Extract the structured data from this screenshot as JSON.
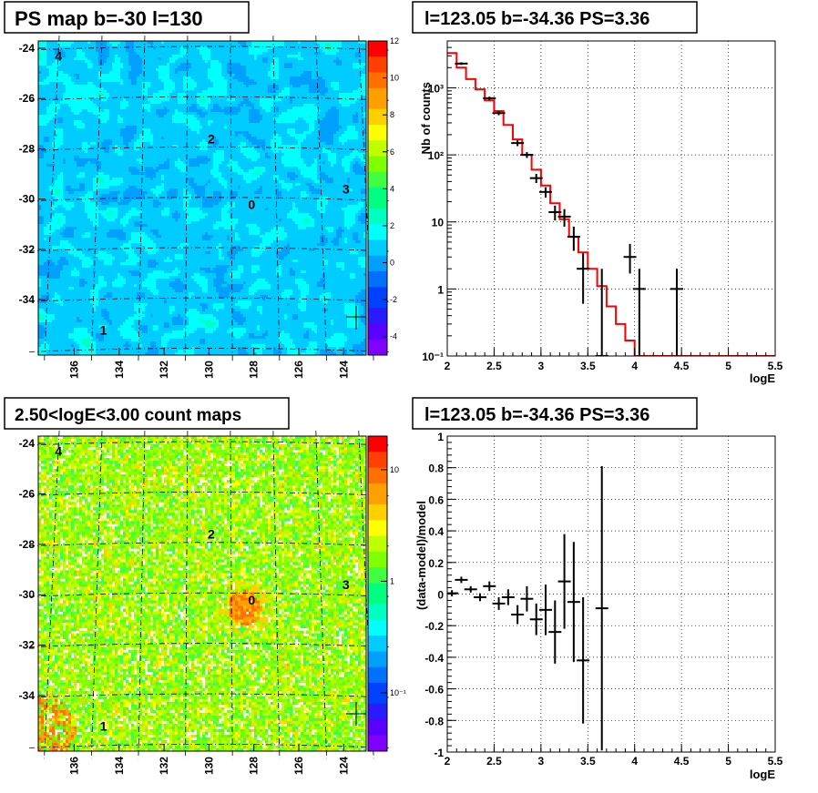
{
  "chart_data": [
    {
      "type": "heatmap",
      "title": "PS map b=-30 l=130",
      "xticks": [
        "136",
        "134",
        "132",
        "130",
        "128",
        "126",
        "124"
      ],
      "yticks": [
        "-24",
        "-26",
        "-28",
        "-30",
        "-32",
        "-34"
      ],
      "colorbar_ticks": [
        "12",
        "10",
        "8",
        "6",
        "4",
        "2",
        "0",
        "-2",
        "-4"
      ],
      "colorbar_range": [
        -5,
        12
      ],
      "markers": [
        {
          "label": "0",
          "l": 128.1,
          "b": -30.2
        },
        {
          "label": "1",
          "l": 134.7,
          "b": -35.2
        },
        {
          "label": "2",
          "l": 129.9,
          "b": -27.6
        },
        {
          "label": "3",
          "l": 123.9,
          "b": -29.6
        },
        {
          "label": "4",
          "l": 136.7,
          "b": -24.3
        }
      ],
      "grid": true
    },
    {
      "type": "line",
      "title": "l=123.05 b=-34.36 PS=3.36",
      "xlabel": "logE",
      "ylabel": "Nb of counts",
      "xlim": [
        2,
        5.5
      ],
      "ylim": [
        0.1,
        5000
      ],
      "yscale": "log",
      "xticks": [
        "2",
        "2.5",
        "3",
        "3.5",
        "4",
        "4.5",
        "5",
        "5.5"
      ],
      "yticks": [
        {
          "label": "10⁻¹",
          "value": 0.1
        },
        {
          "label": "1",
          "value": 1
        },
        {
          "label": "10",
          "value": 10
        },
        {
          "label": "10²",
          "value": 100
        },
        {
          "label": "10³",
          "value": 1000
        }
      ],
      "data_points": [
        {
          "x": 2.15,
          "y": 2300,
          "lo": 2200,
          "hi": 2400
        },
        {
          "x": 2.45,
          "y": 700,
          "lo": 660,
          "hi": 740
        },
        {
          "x": 2.55,
          "y": 420,
          "lo": 390,
          "hi": 450
        },
        {
          "x": 2.75,
          "y": 150,
          "lo": 135,
          "hi": 165
        },
        {
          "x": 2.85,
          "y": 100,
          "lo": 90,
          "hi": 110
        },
        {
          "x": 2.95,
          "y": 45,
          "lo": 38,
          "hi": 52
        },
        {
          "x": 3.05,
          "y": 28,
          "lo": 23,
          "hi": 33
        },
        {
          "x": 3.15,
          "y": 14,
          "lo": 10.5,
          "hi": 17.5
        },
        {
          "x": 3.25,
          "y": 12,
          "lo": 8.5,
          "hi": 15.5
        },
        {
          "x": 3.35,
          "y": 6,
          "lo": 3.7,
          "hi": 8.5
        },
        {
          "x": 3.45,
          "y": 2,
          "lo": 0.6,
          "hi": 3.4
        },
        {
          "x": 3.65,
          "y": 0.1,
          "lo": 0.1,
          "hi": 2.0
        },
        {
          "x": 3.95,
          "y": 3,
          "lo": 1.7,
          "hi": 4.7
        },
        {
          "x": 4.05,
          "y": 1,
          "lo": 0.1,
          "hi": 2.0
        },
        {
          "x": 4.45,
          "y": 1,
          "lo": 0.1,
          "hi": 2.0
        }
      ],
      "model_steps": [
        {
          "x0": 2.0,
          "x1": 2.1,
          "y": 3300
        },
        {
          "x0": 2.1,
          "x1": 2.2,
          "y": 2000
        },
        {
          "x0": 2.2,
          "x1": 2.3,
          "y": 1350
        },
        {
          "x0": 2.3,
          "x1": 2.4,
          "y": 950
        },
        {
          "x0": 2.4,
          "x1": 2.5,
          "y": 650
        },
        {
          "x0": 2.5,
          "x1": 2.6,
          "y": 450
        },
        {
          "x0": 2.6,
          "x1": 2.7,
          "y": 280
        },
        {
          "x0": 2.7,
          "x1": 2.8,
          "y": 170
        },
        {
          "x0": 2.8,
          "x1": 2.9,
          "y": 100
        },
        {
          "x0": 2.9,
          "x1": 3.0,
          "y": 60
        },
        {
          "x0": 3.0,
          "x1": 3.1,
          "y": 35
        },
        {
          "x0": 3.1,
          "x1": 3.2,
          "y": 19
        },
        {
          "x0": 3.2,
          "x1": 3.3,
          "y": 11
        },
        {
          "x0": 3.3,
          "x1": 3.4,
          "y": 6
        },
        {
          "x0": 3.4,
          "x1": 3.5,
          "y": 3.5
        },
        {
          "x0": 3.5,
          "x1": 3.6,
          "y": 2
        },
        {
          "x0": 3.6,
          "x1": 3.7,
          "y": 1.1
        },
        {
          "x0": 3.7,
          "x1": 3.8,
          "y": 0.55
        },
        {
          "x0": 3.8,
          "x1": 3.9,
          "y": 0.3
        },
        {
          "x0": 3.9,
          "x1": 4.0,
          "y": 0.17
        },
        {
          "x0": 4.0,
          "x1": 5.5,
          "y": 0.1
        }
      ],
      "grid": true
    },
    {
      "type": "heatmap",
      "title": "2.50<logE<3.00 count maps",
      "xticks": [
        "136",
        "134",
        "132",
        "130",
        "128",
        "126",
        "124"
      ],
      "yticks": [
        "-24",
        "-26",
        "-28",
        "-30",
        "-32",
        "-34"
      ],
      "colorbar_ticks": [
        {
          "label": "10",
          "value": 10
        },
        {
          "label": "1",
          "value": 1
        },
        {
          "label": "10⁻¹",
          "value": 0.1
        }
      ],
      "colorbar_range": [
        0.03,
        20
      ],
      "colorbar_scale": "log",
      "markers": [
        {
          "label": "0",
          "l": 128.1,
          "b": -30.2
        },
        {
          "label": "1",
          "l": 134.7,
          "b": -35.2
        },
        {
          "label": "2",
          "l": 129.9,
          "b": -27.6
        },
        {
          "label": "3",
          "l": 123.9,
          "b": -29.6
        },
        {
          "label": "4",
          "l": 136.7,
          "b": -24.3
        }
      ],
      "grid": true
    },
    {
      "type": "scatter",
      "title": "l=123.05 b=-34.36 PS=3.36",
      "xlabel": "logE",
      "ylabel": "(data-model)/model",
      "xlim": [
        2,
        5.5
      ],
      "ylim": [
        -1,
        1
      ],
      "xticks": [
        "2",
        "2.5",
        "3",
        "3.5",
        "4",
        "4.5",
        "5",
        "5.5"
      ],
      "yticks": [
        "-1",
        "-0.8",
        "-0.6",
        "-0.4",
        "-0.2",
        "0",
        "0.2",
        "0.4",
        "0.6",
        "0.8",
        "1"
      ],
      "data_points": [
        {
          "x": 2.05,
          "y": 0.005,
          "err": 0.02
        },
        {
          "x": 2.15,
          "y": 0.09,
          "err": 0.02
        },
        {
          "x": 2.25,
          "y": 0.03,
          "err": 0.02
        },
        {
          "x": 2.35,
          "y": -0.02,
          "err": 0.025
        },
        {
          "x": 2.45,
          "y": 0.05,
          "err": 0.03
        },
        {
          "x": 2.55,
          "y": -0.06,
          "err": 0.04
        },
        {
          "x": 2.65,
          "y": -0.02,
          "err": 0.05
        },
        {
          "x": 2.75,
          "y": -0.13,
          "err": 0.06
        },
        {
          "x": 2.85,
          "y": -0.03,
          "err": 0.08
        },
        {
          "x": 2.95,
          "y": -0.16,
          "err": 0.1
        },
        {
          "x": 3.05,
          "y": -0.1,
          "err": 0.16
        },
        {
          "x": 3.15,
          "y": -0.24,
          "err": 0.2
        },
        {
          "x": 3.25,
          "y": 0.08,
          "err": 0.3
        },
        {
          "x": 3.35,
          "y": -0.05,
          "err": 0.38
        },
        {
          "x": 3.45,
          "y": -0.42,
          "err": 0.4
        },
        {
          "x": 3.65,
          "y": -0.09,
          "err": 0.9
        }
      ],
      "grid": true
    }
  ]
}
